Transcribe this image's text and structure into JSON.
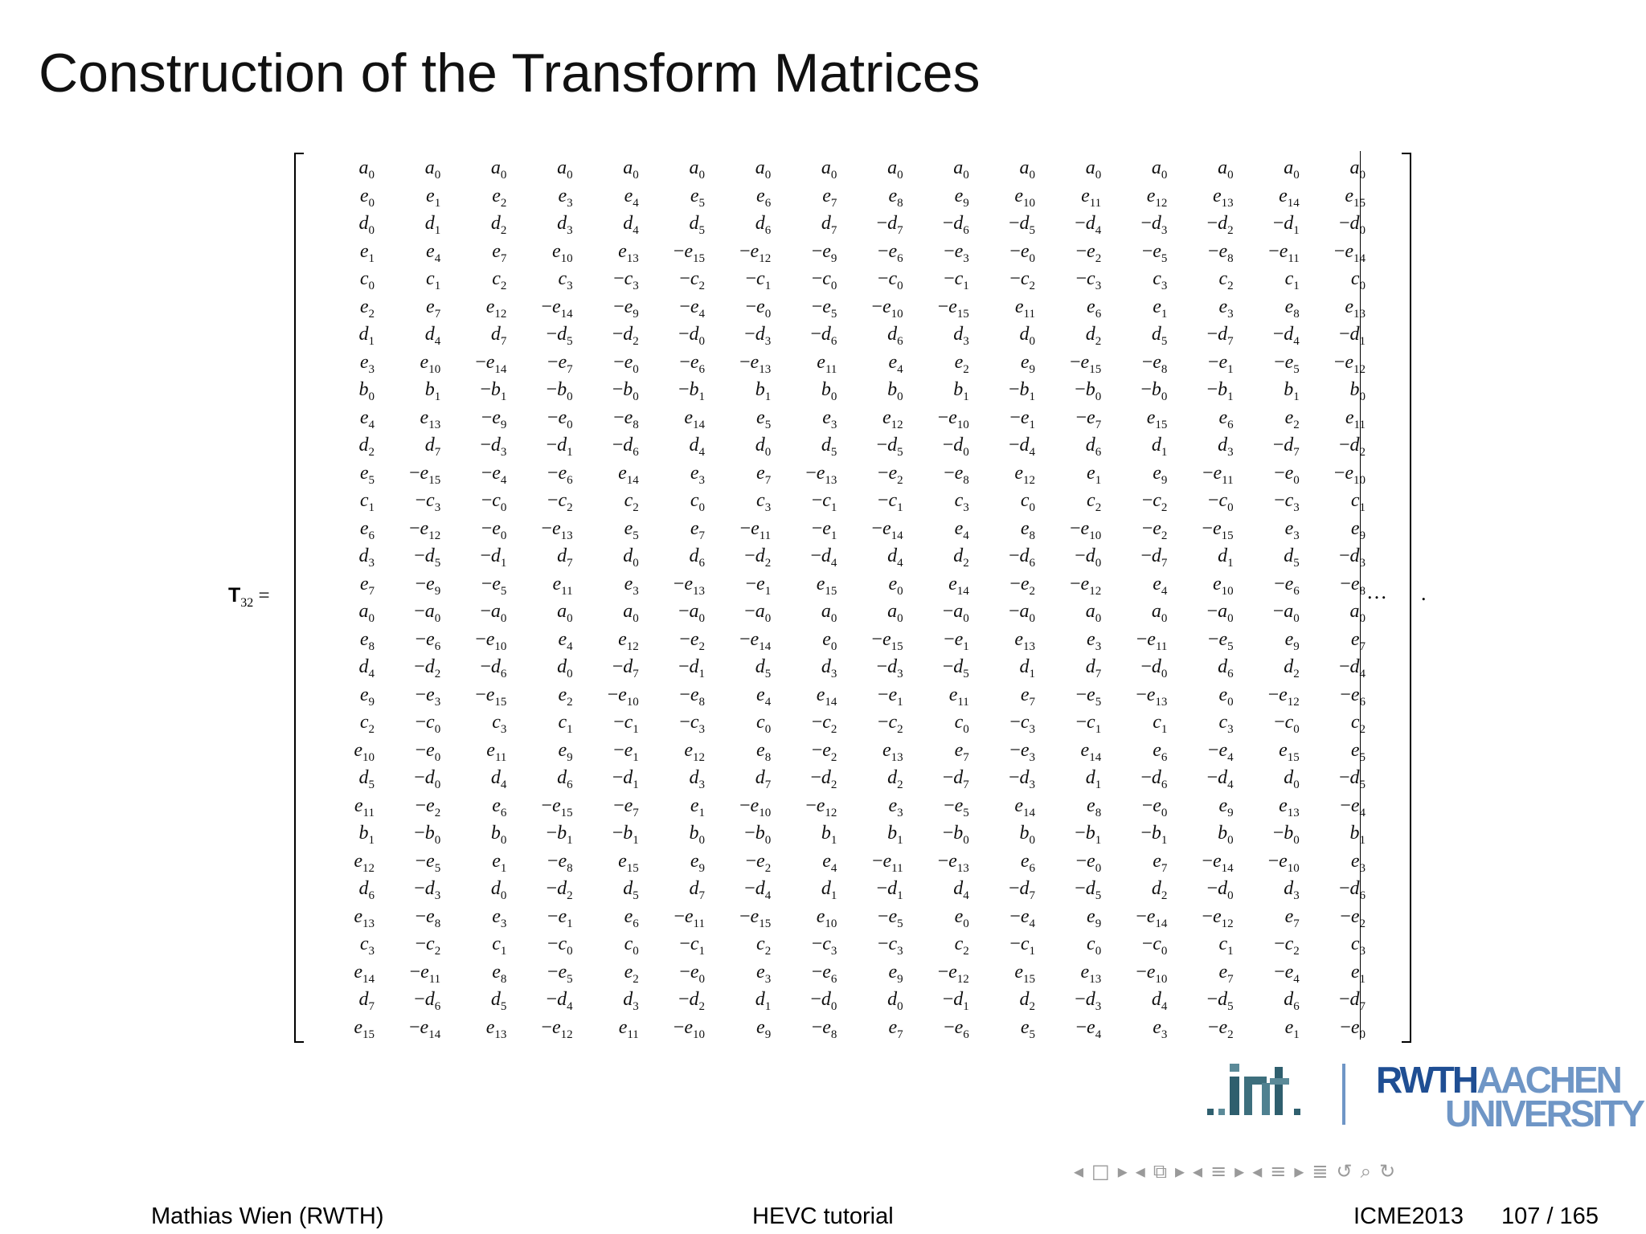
{
  "slide": {
    "title": "Construction of the Transform Matrices",
    "matrix_label": {
      "symbol": "T",
      "subscript": "32",
      "operator": "="
    },
    "continuation": "…",
    "terminal": "."
  },
  "matrix": {
    "rows": [
      [
        "a0",
        "a0",
        "a0",
        "a0",
        "a0",
        "a0",
        "a0",
        "a0",
        "a0",
        "a0",
        "a0",
        "a0",
        "a0",
        "a0",
        "a0",
        "a0"
      ],
      [
        "e0",
        "e1",
        "e2",
        "e3",
        "e4",
        "e5",
        "e6",
        "e7",
        "e8",
        "e9",
        "e10",
        "e11",
        "e12",
        "e13",
        "e14",
        "e15"
      ],
      [
        "d0",
        "d1",
        "d2",
        "d3",
        "d4",
        "d5",
        "d6",
        "d7",
        "-d7",
        "-d6",
        "-d5",
        "-d4",
        "-d3",
        "-d2",
        "-d1",
        "-d0"
      ],
      [
        "e1",
        "e4",
        "e7",
        "e10",
        "e13",
        "-e15",
        "-e12",
        "-e9",
        "-e6",
        "-e3",
        "-e0",
        "-e2",
        "-e5",
        "-e8",
        "-e11",
        "-e14"
      ],
      [
        "c0",
        "c1",
        "c2",
        "c3",
        "-c3",
        "-c2",
        "-c1",
        "-c0",
        "-c0",
        "-c1",
        "-c2",
        "-c3",
        "c3",
        "c2",
        "c1",
        "c0"
      ],
      [
        "e2",
        "e7",
        "e12",
        "-e14",
        "-e9",
        "-e4",
        "-e0",
        "-e5",
        "-e10",
        "-e15",
        "e11",
        "e6",
        "e1",
        "e3",
        "e8",
        "e13"
      ],
      [
        "d1",
        "d4",
        "d7",
        "-d5",
        "-d2",
        "-d0",
        "-d3",
        "-d6",
        "d6",
        "d3",
        "d0",
        "d2",
        "d5",
        "-d7",
        "-d4",
        "-d1"
      ],
      [
        "e3",
        "e10",
        "-e14",
        "-e7",
        "-e0",
        "-e6",
        "-e13",
        "e11",
        "e4",
        "e2",
        "e9",
        "-e15",
        "-e8",
        "-e1",
        "-e5",
        "-e12"
      ],
      [
        "b0",
        "b1",
        "-b1",
        "-b0",
        "-b0",
        "-b1",
        "b1",
        "b0",
        "b0",
        "b1",
        "-b1",
        "-b0",
        "-b0",
        "-b1",
        "b1",
        "b0"
      ],
      [
        "e4",
        "e13",
        "-e9",
        "-e0",
        "-e8",
        "e14",
        "e5",
        "e3",
        "e12",
        "-e10",
        "-e1",
        "-e7",
        "e15",
        "e6",
        "e2",
        "e11"
      ],
      [
        "d2",
        "d7",
        "-d3",
        "-d1",
        "-d6",
        "d4",
        "d0",
        "d5",
        "-d5",
        "-d0",
        "-d4",
        "d6",
        "d1",
        "d3",
        "-d7",
        "-d2"
      ],
      [
        "e5",
        "-e15",
        "-e4",
        "-e6",
        "e14",
        "e3",
        "e7",
        "-e13",
        "-e2",
        "-e8",
        "e12",
        "e1",
        "e9",
        "-e11",
        "-e0",
        "-e10"
      ],
      [
        "c1",
        "-c3",
        "-c0",
        "-c2",
        "c2",
        "c0",
        "c3",
        "-c1",
        "-c1",
        "c3",
        "c0",
        "c2",
        "-c2",
        "-c0",
        "-c3",
        "c1"
      ],
      [
        "e6",
        "-e12",
        "-e0",
        "-e13",
        "e5",
        "e7",
        "-e11",
        "-e1",
        "-e14",
        "e4",
        "e8",
        "-e10",
        "-e2",
        "-e15",
        "e3",
        "e9"
      ],
      [
        "d3",
        "-d5",
        "-d1",
        "d7",
        "d0",
        "d6",
        "-d2",
        "-d4",
        "d4",
        "d2",
        "-d6",
        "-d0",
        "-d7",
        "d1",
        "d5",
        "-d3"
      ],
      [
        "e7",
        "-e9",
        "-e5",
        "e11",
        "e3",
        "-e13",
        "-e1",
        "e15",
        "e0",
        "e14",
        "-e2",
        "-e12",
        "e4",
        "e10",
        "-e6",
        "-e8"
      ],
      [
        "a0",
        "-a0",
        "-a0",
        "a0",
        "a0",
        "-a0",
        "-a0",
        "a0",
        "a0",
        "-a0",
        "-a0",
        "a0",
        "a0",
        "-a0",
        "-a0",
        "a0"
      ],
      [
        "e8",
        "-e6",
        "-e10",
        "e4",
        "e12",
        "-e2",
        "-e14",
        "e0",
        "-e15",
        "-e1",
        "e13",
        "e3",
        "-e11",
        "-e5",
        "e9",
        "e7"
      ],
      [
        "d4",
        "-d2",
        "-d6",
        "d0",
        "-d7",
        "-d1",
        "d5",
        "d3",
        "-d3",
        "-d5",
        "d1",
        "d7",
        "-d0",
        "d6",
        "d2",
        "-d4"
      ],
      [
        "e9",
        "-e3",
        "-e15",
        "e2",
        "-e10",
        "-e8",
        "e4",
        "e14",
        "-e1",
        "e11",
        "e7",
        "-e5",
        "-e13",
        "e0",
        "-e12",
        "-e6"
      ],
      [
        "c2",
        "-c0",
        "c3",
        "c1",
        "-c1",
        "-c3",
        "c0",
        "-c2",
        "-c2",
        "c0",
        "-c3",
        "-c1",
        "c1",
        "c3",
        "-c0",
        "c2"
      ],
      [
        "e10",
        "-e0",
        "e11",
        "e9",
        "-e1",
        "e12",
        "e8",
        "-e2",
        "e13",
        "e7",
        "-e3",
        "e14",
        "e6",
        "-e4",
        "e15",
        "e5"
      ],
      [
        "d5",
        "-d0",
        "d4",
        "d6",
        "-d1",
        "d3",
        "d7",
        "-d2",
        "d2",
        "-d7",
        "-d3",
        "d1",
        "-d6",
        "-d4",
        "d0",
        "-d5"
      ],
      [
        "e11",
        "-e2",
        "e6",
        "-e15",
        "-e7",
        "e1",
        "-e10",
        "-e12",
        "e3",
        "-e5",
        "e14",
        "e8",
        "-e0",
        "e9",
        "e13",
        "-e4"
      ],
      [
        "b1",
        "-b0",
        "b0",
        "-b1",
        "-b1",
        "b0",
        "-b0",
        "b1",
        "b1",
        "-b0",
        "b0",
        "-b1",
        "-b1",
        "b0",
        "-b0",
        "b1"
      ],
      [
        "e12",
        "-e5",
        "e1",
        "-e8",
        "e15",
        "e9",
        "-e2",
        "e4",
        "-e11",
        "-e13",
        "e6",
        "-e0",
        "e7",
        "-e14",
        "-e10",
        "e3"
      ],
      [
        "d6",
        "-d3",
        "d0",
        "-d2",
        "d5",
        "d7",
        "-d4",
        "d1",
        "-d1",
        "d4",
        "-d7",
        "-d5",
        "d2",
        "-d0",
        "d3",
        "-d6"
      ],
      [
        "e13",
        "-e8",
        "e3",
        "-e1",
        "e6",
        "-e11",
        "-e15",
        "e10",
        "-e5",
        "e0",
        "-e4",
        "e9",
        "-e14",
        "-e12",
        "e7",
        "-e2"
      ],
      [
        "c3",
        "-c2",
        "c1",
        "-c0",
        "c0",
        "-c1",
        "c2",
        "-c3",
        "-c3",
        "c2",
        "-c1",
        "c0",
        "-c0",
        "c1",
        "-c2",
        "c3"
      ],
      [
        "e14",
        "-e11",
        "e8",
        "-e5",
        "e2",
        "-e0",
        "e3",
        "-e6",
        "e9",
        "-e12",
        "e15",
        "e13",
        "-e10",
        "e7",
        "-e4",
        "e1"
      ],
      [
        "d7",
        "-d6",
        "d5",
        "-d4",
        "d3",
        "-d2",
        "d1",
        "-d0",
        "d0",
        "-d1",
        "d2",
        "-d3",
        "d4",
        "-d5",
        "d6",
        "-d7"
      ],
      [
        "e15",
        "-e14",
        "e13",
        "-e12",
        "e11",
        "-e10",
        "e9",
        "-e8",
        "e7",
        "-e6",
        "e5",
        "-e4",
        "e3",
        "-e2",
        "e1",
        "-e0"
      ]
    ]
  },
  "logos": {
    "institute": ".int.",
    "university_line1_a": "RWTH",
    "university_line1_b": "AACHEN",
    "university_line2": "UNIVERSITY",
    "colors": {
      "rwth_dark": "#1f4e93",
      "rwth_light": "#6f96c6",
      "int_teal": "#2f5f6e"
    }
  },
  "navigation": {
    "icons": [
      "prev-slide-icon",
      "frame-icon",
      "next-slide-icon",
      "prev-section-icon",
      "section-icon",
      "next-section-icon",
      "prev-subsection-icon",
      "subsection-icon",
      "next-subsection-icon",
      "outline-icon",
      "search-icon",
      "undo-icon",
      "redo-icon"
    ],
    "glyphs": [
      "◂",
      "□",
      "▸",
      "◂",
      "⧉",
      "▸",
      "◂",
      "≡",
      "▸",
      "◂",
      "≡",
      "▸",
      "≣",
      "↺",
      "⌕",
      "↻"
    ]
  },
  "footer": {
    "author": "Mathias Wien  (RWTH)",
    "title": "HEVC tutorial",
    "conference": "ICME2013",
    "page": "107 / 165"
  }
}
